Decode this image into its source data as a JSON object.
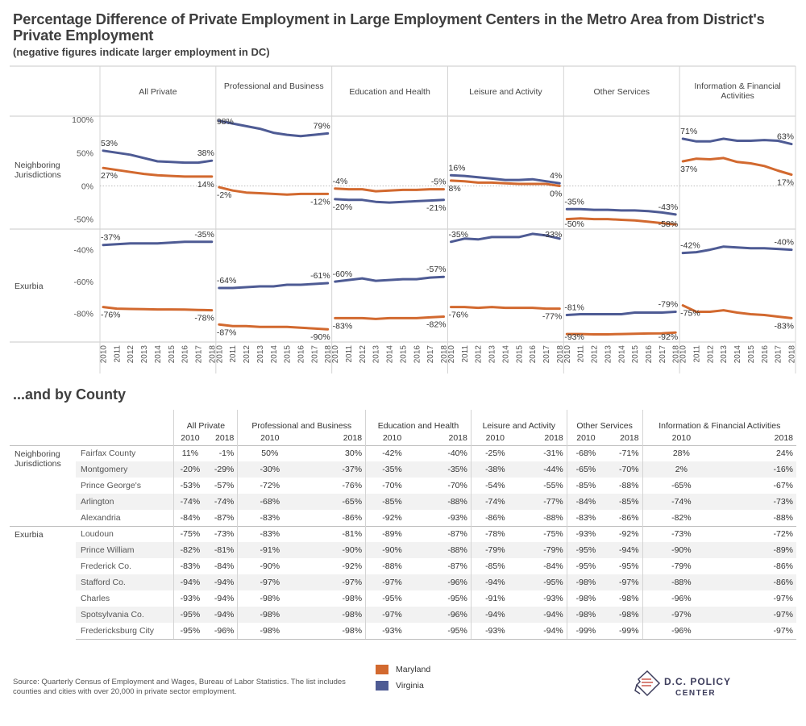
{
  "title": "Percentage Difference of Private Employment in Large Employment Centers in the Metro Area from District's Private Employment",
  "subtitle": "(negative figures indicate larger employment in DC)",
  "section2_title": "...and by County",
  "source": "Source: Quarterly Census of Employment and Wages, Bureau of Labor Statistics. The list includes counties and cities with over 20,000 in private sector employment.",
  "legend": [
    {
      "name": "Maryland",
      "color": "#d2692f"
    },
    {
      "name": "Virginia",
      "color": "#4e5b94"
    }
  ],
  "logo": {
    "line1": "D.C. POLICY",
    "line2": "CENTER"
  },
  "chart_data": {
    "type": "line",
    "x": [
      "2010",
      "2011",
      "2012",
      "2013",
      "2014",
      "2015",
      "2016",
      "2017",
      "2018"
    ],
    "columns": [
      "All Private",
      "Professional and Business",
      "Education and Health",
      "Leisure and Activity",
      "Other Services",
      "Information & Financial Activities"
    ],
    "rows": [
      {
        "name": "Neighboring Jurisdictions",
        "ylim": [
          -65,
          105
        ],
        "ticks": [
          100,
          50,
          0,
          -50
        ],
        "tick_labels": [
          "100%",
          "50%",
          "0%",
          "-50%"
        ],
        "zero_line": true,
        "panels": [
          {
            "Virginia": [
              53,
              50,
              47,
              42,
              37,
              36,
              35,
              35,
              38
            ],
            "Maryland": [
              27,
              24,
              21,
              18,
              16,
              15,
              14,
              14,
              14
            ],
            "labels": [
              [
                "Virginia",
                0,
                "53%"
              ],
              [
                "Virginia",
                8,
                "38%"
              ],
              [
                "Maryland",
                0,
                "27%"
              ],
              [
                "Maryland",
                8,
                "14%"
              ]
            ]
          },
          {
            "Virginia": [
              98,
              94,
              90,
              86,
              80,
              77,
              75,
              77,
              79
            ],
            "Maryland": [
              -2,
              -7,
              -10,
              -11,
              -12,
              -13,
              -12,
              -12,
              -12
            ],
            "labels": [
              [
                "Virginia",
                0,
                "98%"
              ],
              [
                "Virginia",
                8,
                "79%"
              ],
              [
                "Maryland",
                0,
                "-2%"
              ],
              [
                "Maryland",
                8,
                "-12%"
              ]
            ]
          },
          {
            "Virginia": [
              -20,
              -21,
              -21,
              -24,
              -25,
              -24,
              -23,
              -22,
              -21
            ],
            "Maryland": [
              -4,
              -5,
              -5,
              -8,
              -7,
              -6,
              -6,
              -5,
              -5
            ],
            "labels": [
              [
                "Virginia",
                0,
                "-20%"
              ],
              [
                "Virginia",
                8,
                "-21%"
              ],
              [
                "Maryland",
                0,
                "-4%"
              ],
              [
                "Maryland",
                8,
                "-5%"
              ]
            ]
          },
          {
            "Virginia": [
              16,
              15,
              13,
              11,
              9,
              9,
              10,
              7,
              4
            ],
            "Maryland": [
              8,
              7,
              5,
              5,
              4,
              3,
              3,
              3,
              0
            ],
            "labels": [
              [
                "Virginia",
                0,
                "16%"
              ],
              [
                "Virginia",
                8,
                "4%"
              ],
              [
                "Maryland",
                0,
                "8%"
              ],
              [
                "Maryland",
                8,
                "0%"
              ]
            ]
          },
          {
            "Virginia": [
              -35,
              -35,
              -36,
              -36,
              -37,
              -37,
              -38,
              -40,
              -43
            ],
            "Maryland": [
              -50,
              -49,
              -50,
              -50,
              -51,
              -52,
              -54,
              -56,
              -58
            ],
            "labels": [
              [
                "Virginia",
                0,
                "-35%"
              ],
              [
                "Virginia",
                8,
                "-43%"
              ],
              [
                "Maryland",
                0,
                "-50%"
              ],
              [
                "Maryland",
                8,
                "-58%"
              ]
            ]
          },
          {
            "Virginia": [
              71,
              67,
              67,
              71,
              68,
              68,
              69,
              68,
              63
            ],
            "Maryland": [
              37,
              41,
              40,
              42,
              36,
              34,
              30,
              23,
              17
            ],
            "labels": [
              [
                "Virginia",
                0,
                "71%"
              ],
              [
                "Virginia",
                8,
                "63%"
              ],
              [
                "Maryland",
                0,
                "37%"
              ],
              [
                "Maryland",
                8,
                "17%"
              ]
            ]
          }
        ]
      },
      {
        "name": "Exurbia",
        "ylim": [
          -98,
          -27
        ],
        "ticks": [
          -40,
          -60,
          -80
        ],
        "tick_labels": [
          "-40%",
          "-60%",
          "-80%"
        ],
        "zero_line": false,
        "panels": [
          {
            "Virginia": [
              -37,
              -36.5,
              -36,
              -36,
              -36,
              -35.5,
              -35,
              -35,
              -35
            ],
            "Maryland": [
              -76,
              -77,
              -77.2,
              -77.3,
              -77.5,
              -77.5,
              -77.6,
              -77.8,
              -78
            ],
            "labels": [
              [
                "Virginia",
                0,
                "-37%"
              ],
              [
                "Virginia",
                8,
                "-35%"
              ],
              [
                "Maryland",
                0,
                "-76%"
              ],
              [
                "Maryland",
                8,
                "-78%"
              ]
            ]
          },
          {
            "Virginia": [
              -64,
              -64,
              -63.5,
              -63,
              -63,
              -62,
              -62,
              -61.5,
              -61
            ],
            "Maryland": [
              -87,
              -88,
              -88,
              -88.5,
              -88.5,
              -88.5,
              -89,
              -89.5,
              -90
            ],
            "labels": [
              [
                "Virginia",
                0,
                "-64%"
              ],
              [
                "Virginia",
                8,
                "-61%"
              ],
              [
                "Maryland",
                0,
                "-87%"
              ],
              [
                "Maryland",
                8,
                "-90%"
              ]
            ]
          },
          {
            "Virginia": [
              -60,
              -59,
              -58,
              -59.5,
              -59,
              -58.5,
              -58.5,
              -57.5,
              -57
            ],
            "Maryland": [
              -83,
              -83,
              -83,
              -83.5,
              -83,
              -83,
              -83,
              -82.5,
              -82
            ],
            "labels": [
              [
                "Virginia",
                0,
                "-60%"
              ],
              [
                "Virginia",
                8,
                "-57%"
              ],
              [
                "Maryland",
                0,
                "-83%"
              ],
              [
                "Maryland",
                8,
                "-82%"
              ]
            ]
          },
          {
            "Virginia": [
              -35,
              -33,
              -33.5,
              -32,
              -32,
              -32,
              -30,
              -31,
              -33
            ],
            "Maryland": [
              -76,
              -76,
              -76.5,
              -76,
              -76.5,
              -76.5,
              -76.5,
              -77,
              -77
            ],
            "labels": [
              [
                "Virginia",
                0,
                "-35%"
              ],
              [
                "Virginia",
                8,
                "-33%"
              ],
              [
                "Maryland",
                0,
                "-76%"
              ],
              [
                "Maryland",
                8,
                "-77%"
              ]
            ]
          },
          {
            "Virginia": [
              -81,
              -80.5,
              -80.5,
              -80.5,
              -80.5,
              -79.5,
              -79.5,
              -79.5,
              -79
            ],
            "Maryland": [
              -93,
              -93,
              -93.2,
              -93.2,
              -93,
              -92.8,
              -92.6,
              -92.5,
              -92
            ],
            "labels": [
              [
                "Virginia",
                0,
                "-81%"
              ],
              [
                "Virginia",
                8,
                "-79%"
              ],
              [
                "Maryland",
                0,
                "-93%"
              ],
              [
                "Maryland",
                8,
                "-92%"
              ]
            ]
          },
          {
            "Virginia": [
              -42,
              -41.5,
              -40,
              -38,
              -38.5,
              -39,
              -39,
              -39.5,
              -40
            ],
            "Maryland": [
              -75,
              -79,
              -79,
              -78,
              -79.5,
              -80.5,
              -81,
              -82,
              -83
            ],
            "labels": [
              [
                "Virginia",
                0,
                "-42%"
              ],
              [
                "Virginia",
                8,
                "-40%"
              ],
              [
                "Maryland",
                0,
                "-75%"
              ],
              [
                "Maryland",
                8,
                "-83%"
              ]
            ]
          }
        ]
      }
    ]
  },
  "county_table": {
    "sectors": [
      "All Private",
      "Professional and Business",
      "Education and Health",
      "Leisure and Activity",
      "Other Services",
      "Information & Financial Activities"
    ],
    "years": [
      "2010",
      "2018"
    ],
    "groups": [
      {
        "name": "Neighboring Jurisdictions",
        "rows": [
          {
            "name": "Fairfax County",
            "values": [
              "11%",
              "-1%",
              "50%",
              "30%",
              "-42%",
              "-40%",
              "-25%",
              "-31%",
              "-68%",
              "-71%",
              "28%",
              "24%"
            ]
          },
          {
            "name": "Montgomery",
            "values": [
              "-20%",
              "-29%",
              "-30%",
              "-37%",
              "-35%",
              "-35%",
              "-38%",
              "-44%",
              "-65%",
              "-70%",
              "2%",
              "-16%"
            ]
          },
          {
            "name": "Prince George's",
            "values": [
              "-53%",
              "-57%",
              "-72%",
              "-76%",
              "-70%",
              "-70%",
              "-54%",
              "-55%",
              "-85%",
              "-88%",
              "-65%",
              "-67%"
            ]
          },
          {
            "name": "Arlington",
            "values": [
              "-74%",
              "-74%",
              "-68%",
              "-65%",
              "-85%",
              "-88%",
              "-74%",
              "-77%",
              "-84%",
              "-85%",
              "-74%",
              "-73%"
            ]
          },
          {
            "name": "Alexandria",
            "values": [
              "-84%",
              "-87%",
              "-83%",
              "-86%",
              "-92%",
              "-93%",
              "-86%",
              "-88%",
              "-83%",
              "-86%",
              "-82%",
              "-88%"
            ]
          }
        ]
      },
      {
        "name": "Exurbia",
        "rows": [
          {
            "name": "Loudoun",
            "values": [
              "-75%",
              "-73%",
              "-83%",
              "-81%",
              "-89%",
              "-87%",
              "-78%",
              "-75%",
              "-93%",
              "-92%",
              "-73%",
              "-72%"
            ]
          },
          {
            "name": "Prince William",
            "values": [
              "-82%",
              "-81%",
              "-91%",
              "-90%",
              "-90%",
              "-88%",
              "-79%",
              "-79%",
              "-95%",
              "-94%",
              "-90%",
              "-89%"
            ]
          },
          {
            "name": "Frederick Co.",
            "values": [
              "-83%",
              "-84%",
              "-90%",
              "-92%",
              "-88%",
              "-87%",
              "-85%",
              "-84%",
              "-95%",
              "-95%",
              "-79%",
              "-86%"
            ]
          },
          {
            "name": "Stafford Co.",
            "values": [
              "-94%",
              "-94%",
              "-97%",
              "-97%",
              "-97%",
              "-96%",
              "-94%",
              "-95%",
              "-98%",
              "-97%",
              "-88%",
              "-86%"
            ]
          },
          {
            "name": "Charles",
            "values": [
              "-93%",
              "-94%",
              "-98%",
              "-98%",
              "-95%",
              "-95%",
              "-91%",
              "-93%",
              "-98%",
              "-98%",
              "-96%",
              "-97%"
            ]
          },
          {
            "name": "Spotsylvania Co.",
            "values": [
              "-95%",
              "-94%",
              "-98%",
              "-98%",
              "-97%",
              "-96%",
              "-94%",
              "-94%",
              "-98%",
              "-98%",
              "-97%",
              "-97%"
            ]
          },
          {
            "name": "Fredericksburg City",
            "values": [
              "-95%",
              "-96%",
              "-98%",
              "-98%",
              "-93%",
              "-95%",
              "-93%",
              "-94%",
              "-99%",
              "-99%",
              "-96%",
              "-97%"
            ]
          }
        ]
      }
    ]
  }
}
